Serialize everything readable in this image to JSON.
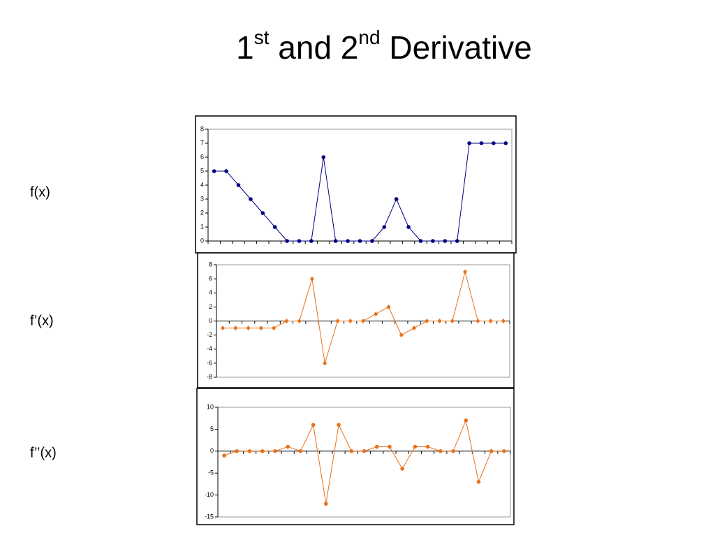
{
  "title": {
    "parts": [
      "1",
      "st",
      " and 2",
      "nd",
      " Derivative"
    ]
  },
  "chart_data": [
    {
      "type": "line",
      "label": "f(x)",
      "marker": "circle",
      "color": "#000080",
      "values": [
        5,
        5,
        4,
        3,
        2,
        1,
        0,
        0,
        0,
        6,
        0,
        0,
        0,
        0,
        1,
        3,
        1,
        0,
        0,
        0,
        0,
        7,
        7,
        7,
        7
      ],
      "ylim": [
        0,
        8
      ],
      "yticks": [
        0,
        1,
        2,
        3,
        4,
        5,
        6,
        7,
        8
      ]
    },
    {
      "type": "line",
      "label": "f’(x)",
      "marker": "diamond",
      "color": "#e8711a",
      "values": [
        -1,
        -1,
        -1,
        -1,
        -1,
        0,
        0,
        6,
        -6,
        0,
        0,
        0,
        1,
        2,
        -2,
        -1,
        0,
        0,
        0,
        7,
        0,
        0,
        0
      ],
      "ylim": [
        -8,
        8
      ],
      "yticks": [
        -8,
        -6,
        -4,
        -2,
        0,
        2,
        4,
        6,
        8
      ]
    },
    {
      "type": "line",
      "label": "f’’(x)",
      "marker": "circle",
      "color": "#e8711a",
      "values": [
        -1,
        0,
        0,
        0,
        0,
        1,
        0,
        6,
        -12,
        6,
        0,
        0,
        1,
        1,
        -4,
        1,
        1,
        0,
        0,
        7,
        -7,
        0,
        0
      ],
      "ylim": [
        -15,
        10
      ],
      "yticks": [
        -15,
        -10,
        -5,
        0,
        5,
        10
      ]
    }
  ]
}
